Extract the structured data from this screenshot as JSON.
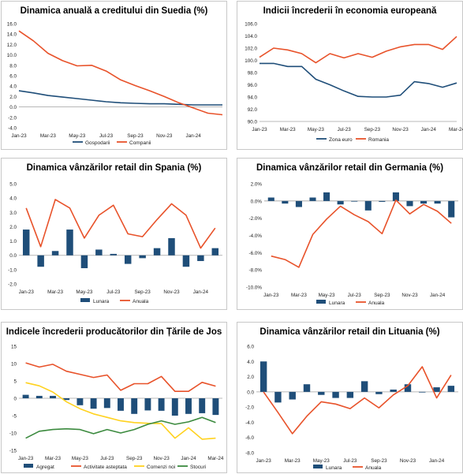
{
  "colors": {
    "blue": "#1f4e79",
    "orange": "#e8522a",
    "yellow": "#ffd21f",
    "green": "#3b8a3e",
    "zero": "#a0a0a0"
  },
  "chart_data": [
    {
      "id": "sweden",
      "title": "Dinamica anuală a creditului din Suedia (%)",
      "type": "line",
      "xticks": [
        "Jan-23",
        "Mar-23",
        "May-23",
        "Jul-23",
        "Sep-23",
        "Nov-23",
        "Jan-24"
      ],
      "yticks": [
        "16.0",
        "14.0",
        "12.0",
        "10.0",
        "8.0",
        "6.0",
        "4.0",
        "2.0",
        "0.0",
        "-2.0",
        "-4.0"
      ],
      "ylim": [
        -4,
        16
      ],
      "series": [
        {
          "name": "Gospodarii",
          "color": "#1f4e79",
          "values": [
            3.1,
            2.7,
            2.2,
            1.9,
            1.6,
            1.3,
            1.0,
            0.8,
            0.7,
            0.6,
            0.6,
            0.5,
            0.4,
            0.4,
            0.4
          ]
        },
        {
          "name": "Companii",
          "color": "#e8522a",
          "values": [
            14.6,
            12.7,
            10.3,
            8.9,
            7.9,
            8.0,
            6.9,
            5.2,
            4.1,
            3.1,
            2.0,
            0.8,
            -0.2,
            -1.2,
            -1.5
          ]
        }
      ]
    },
    {
      "id": "eu",
      "title": "Indicii încrederii în economia europeană",
      "type": "line",
      "xticks": [
        "Jan-23",
        "Mar-23",
        "May-23",
        "Jul-23",
        "Sep-23",
        "Nov-23",
        "Jan-24",
        "Mar-24"
      ],
      "yticks": [
        "106.0",
        "104.0",
        "102.0",
        "100.0",
        "98.0",
        "96.0",
        "94.0",
        "92.0",
        "90.0"
      ],
      "ylim": [
        90,
        106
      ],
      "series": [
        {
          "name": "Zona euro",
          "color": "#1f4e79",
          "values": [
            99.5,
            99.5,
            99.0,
            99.0,
            96.9,
            96.0,
            95.0,
            94.1,
            94.0,
            94.0,
            94.3,
            96.5,
            96.2,
            95.6,
            96.3
          ]
        },
        {
          "name": "Romania",
          "color": "#e8522a",
          "values": [
            100.5,
            102.0,
            101.7,
            101.1,
            99.6,
            101.1,
            100.4,
            101.1,
            100.5,
            101.5,
            102.2,
            102.6,
            102.6,
            101.8,
            103.9
          ]
        }
      ]
    },
    {
      "id": "spain",
      "title": "Dinamica vânzărilor retail din Spania (%)",
      "type": "bar+line",
      "xticks": [
        "Jan-23",
        "Mar-23",
        "May-23",
        "Jul-23",
        "Sep-23",
        "Nov-23",
        "Jan-24"
      ],
      "yticks": [
        "5.0",
        "4.0",
        "3.0",
        "2.0",
        "1.0",
        "0.0",
        "-1.0",
        "-2.0"
      ],
      "ylim": [
        -2,
        5
      ],
      "bars": {
        "name": "Lunara",
        "color": "#1f4e79",
        "values": [
          1.8,
          -0.8,
          0.3,
          1.8,
          -0.9,
          0.4,
          0.1,
          -0.6,
          -0.2,
          0.5,
          1.2,
          -0.8,
          -0.4,
          0.5
        ]
      },
      "series": [
        {
          "name": "Anuala",
          "color": "#e8522a",
          "values": [
            3.3,
            0.6,
            3.9,
            3.3,
            1.2,
            2.8,
            3.5,
            1.5,
            1.3,
            2.5,
            3.6,
            2.8,
            0.5,
            1.9
          ]
        }
      ]
    },
    {
      "id": "germany",
      "title": "Dinamica vânzărilor retail din Germania (%)",
      "type": "bar+line",
      "xticks": [
        "Jan-23",
        "Mar-23",
        "May-23",
        "Jul-23",
        "Sep-23",
        "Nov-23",
        "Jan-24"
      ],
      "yticks": [
        "2.0%",
        "0.0%",
        "-2.0%",
        "-4.0%",
        "-6.0%",
        "-8.0%",
        "-10.0%"
      ],
      "ylim": [
        -10,
        2
      ],
      "bars": {
        "name": "Lunara",
        "color": "#1f4e79",
        "values": [
          0.4,
          -0.3,
          -0.7,
          0.4,
          1.0,
          -0.4,
          0.0,
          -1.1,
          -0.1,
          1.0,
          -0.6,
          -0.3,
          -0.3,
          -1.9
        ]
      },
      "series": [
        {
          "name": "Anuala",
          "color": "#e8522a",
          "values": [
            -6.4,
            -6.8,
            -7.7,
            -3.9,
            -2.1,
            -0.6,
            -1.6,
            -2.4,
            -3.8,
            0.1,
            -1.5,
            -0.4,
            -1.2,
            -2.6
          ]
        }
      ]
    },
    {
      "id": "netherlands",
      "title": "Indicele încrederii producătorilor din Țările de Jos",
      "type": "bar+line",
      "xticks": [
        "Jan-23",
        "Mar-23",
        "May-23",
        "Jul-23",
        "Sep-23",
        "Nov-23",
        "Jan-24",
        "Mar-24"
      ],
      "yticks": [
        "15",
        "10",
        "5",
        "0",
        "-5",
        "-10",
        "-15"
      ],
      "ylim": [
        -15,
        15
      ],
      "bars": {
        "name": "Agregat",
        "color": "#1f4e79",
        "values": [
          1.0,
          0.7,
          0.7,
          -0.5,
          -2.0,
          -3.0,
          -2.8,
          -3.6,
          -4.5,
          -3.5,
          -3.6,
          -5.0,
          -4.5,
          -4.3,
          -4.8
        ]
      },
      "series": [
        {
          "name": "Activitate asteptata",
          "color": "#e8522a",
          "values": [
            10.2,
            9.0,
            9.8,
            7.8,
            6.9,
            6.0,
            6.7,
            2.3,
            4.2,
            4.2,
            6.3,
            2.0,
            2.0,
            4.6,
            3.5
          ]
        },
        {
          "name": "Comenzi noi",
          "color": "#ffd21f",
          "values": [
            4.5,
            3.6,
            1.8,
            -1.0,
            -3.0,
            -4.5,
            -5.5,
            -6.5,
            -7.0,
            -7.2,
            -7.3,
            -11.5,
            -8.5,
            -11.8,
            -11.5
          ]
        },
        {
          "name": "Stocuri",
          "color": "#3b8a3e",
          "values": [
            -11.5,
            -9.5,
            -9.0,
            -8.8,
            -9.0,
            -10.2,
            -9.0,
            -10.0,
            -9.0,
            -7.5,
            -6.5,
            -7.5,
            -6.8,
            -5.5,
            -7.0
          ]
        }
      ]
    },
    {
      "id": "lithuania",
      "title": "Dinamica vânzărilor retail din Lituania (%)",
      "type": "bar+line",
      "xticks": [
        "Jan-23",
        "Mar-23",
        "May-23",
        "Jul-23",
        "Sep-23",
        "Nov-23",
        "Jan-24"
      ],
      "yticks": [
        "6.0",
        "4.0",
        "2.0",
        "0.0",
        "-2.0",
        "-4.0",
        "-6.0",
        "-8.0"
      ],
      "ylim": [
        -8,
        6
      ],
      "bars": {
        "name": "Lunara",
        "color": "#1f4e79",
        "values": [
          4.0,
          -1.4,
          -1.0,
          1.0,
          -0.4,
          -0.8,
          -0.8,
          1.4,
          -0.3,
          0.3,
          1.0,
          0.0,
          0.6,
          0.8
        ]
      },
      "series": [
        {
          "name": "Anuala",
          "color": "#e8522a",
          "values": [
            0.0,
            -2.7,
            -5.5,
            -3.2,
            -1.3,
            -1.6,
            -2.2,
            -0.8,
            -2.1,
            -0.4,
            0.8,
            3.3,
            -0.8,
            2.2
          ]
        }
      ]
    }
  ]
}
